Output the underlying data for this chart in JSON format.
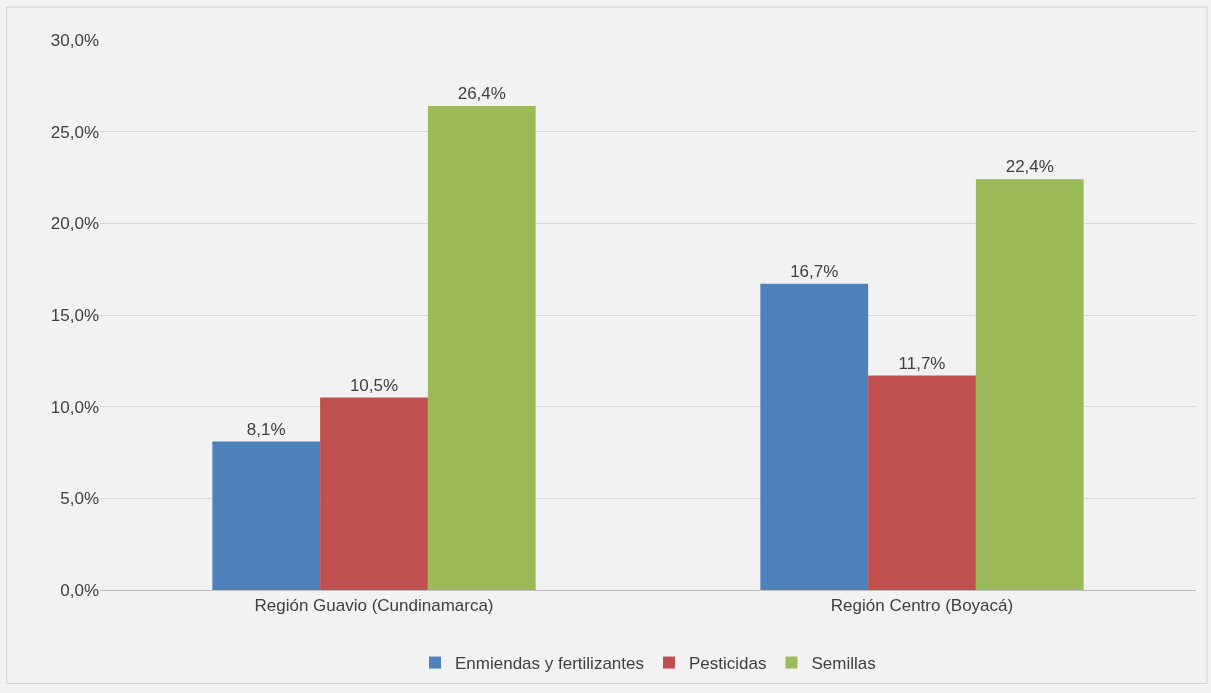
{
  "chart_data": {
    "type": "bar",
    "categories": [
      "Región Guavio (Cundinamarca)",
      "Región Centro (Boyacá)"
    ],
    "series": [
      {
        "name": "Enmiendas y fertilizantes",
        "color": "#4f81bd",
        "values": [
          8.1,
          16.7
        ],
        "value_labels": [
          "8,1%",
          "16,7%"
        ]
      },
      {
        "name": "Pesticidas",
        "color": "#c0504d",
        "values": [
          10.5,
          11.7
        ],
        "value_labels": [
          "10,5%",
          "11,7%"
        ]
      },
      {
        "name": "Semillas",
        "color": "#9bbb59",
        "values": [
          26.4,
          22.4
        ],
        "value_labels": [
          "26,4%",
          "22,4%"
        ]
      }
    ],
    "ylim": [
      0,
      30
    ],
    "yticks": [
      {
        "value": 0,
        "label": "0,0%"
      },
      {
        "value": 5,
        "label": "5,0%"
      },
      {
        "value": 10,
        "label": "10,0%"
      },
      {
        "value": 15,
        "label": "15,0%"
      },
      {
        "value": 20,
        "label": "20,0%"
      },
      {
        "value": 25,
        "label": "25,0%"
      },
      {
        "value": 30,
        "label": "30,0%"
      }
    ],
    "grid": "y",
    "legend": "bottom"
  }
}
